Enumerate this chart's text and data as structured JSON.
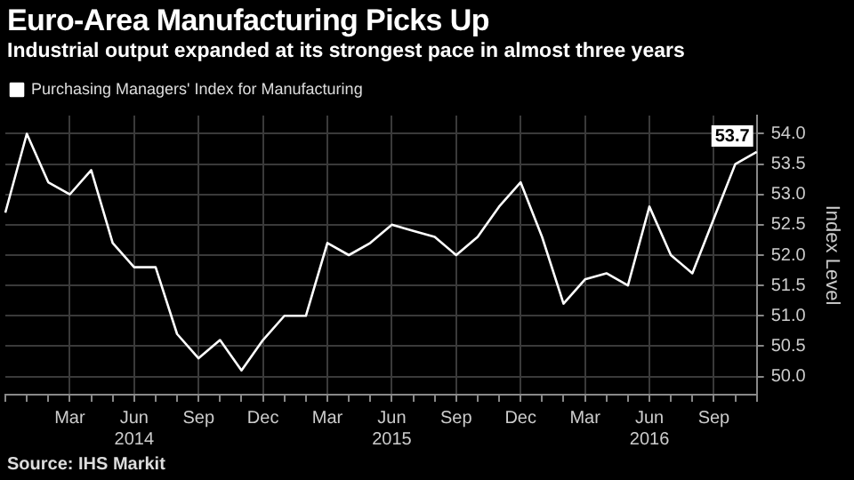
{
  "chart_data": {
    "type": "line",
    "title": "Euro-Area Manufacturing Picks Up",
    "subtitle": "Industrial output expanded at its strongest pace in almost three years",
    "ylabel": "Index Level",
    "categories": [
      null,
      null,
      null,
      "Mar",
      null,
      null,
      "Jun 2014",
      null,
      null,
      "Sep",
      null,
      null,
      "Dec",
      null,
      null,
      "Mar",
      null,
      null,
      "Jun 2015",
      null,
      null,
      "Sep",
      null,
      null,
      "Dec",
      null,
      null,
      "Mar",
      null,
      null,
      "Jun 2016",
      null,
      null,
      "Sep",
      null,
      null
    ],
    "series": [
      {
        "name": "Purchasing Managers' Index for Manufacturing",
        "color": "#ffffff",
        "values": [
          52.7,
          54.0,
          53.2,
          53.0,
          53.4,
          52.2,
          51.8,
          51.8,
          50.7,
          50.3,
          50.6,
          50.1,
          50.6,
          51.0,
          51.0,
          52.2,
          52.0,
          52.2,
          52.5,
          52.4,
          52.3,
          52.0,
          52.3,
          52.8,
          53.2,
          52.3,
          51.2,
          51.6,
          51.7,
          51.5,
          52.8,
          52.0,
          51.7,
          52.6,
          53.5,
          53.7
        ],
        "value_labels": [
          null,
          null,
          null,
          null,
          null,
          null,
          null,
          null,
          null,
          null,
          null,
          null,
          null,
          null,
          null,
          null,
          null,
          null,
          null,
          null,
          null,
          null,
          null,
          null,
          null,
          null,
          null,
          null,
          null,
          null,
          null,
          null,
          null,
          null,
          null,
          "53.7"
        ]
      }
    ],
    "ylim": [
      49.7,
      54.3
    ],
    "yticks": [
      {
        "value": 50,
        "label": "50.0"
      },
      {
        "value": 50.5,
        "label": "50.5"
      },
      {
        "value": 51,
        "label": "51.0"
      },
      {
        "value": 51.5,
        "label": "51.5"
      },
      {
        "value": 52,
        "label": "52.0"
      },
      {
        "value": 52.5,
        "label": "52.5"
      },
      {
        "value": 53,
        "label": "53.0"
      },
      {
        "value": 53.5,
        "label": "53.5"
      },
      {
        "value": 54,
        "label": "54.0"
      }
    ],
    "annotations": [
      "Source: IHS Markit"
    ],
    "grid": true,
    "legend": "top left",
    "marker": "none",
    "line_style": "solid"
  }
}
